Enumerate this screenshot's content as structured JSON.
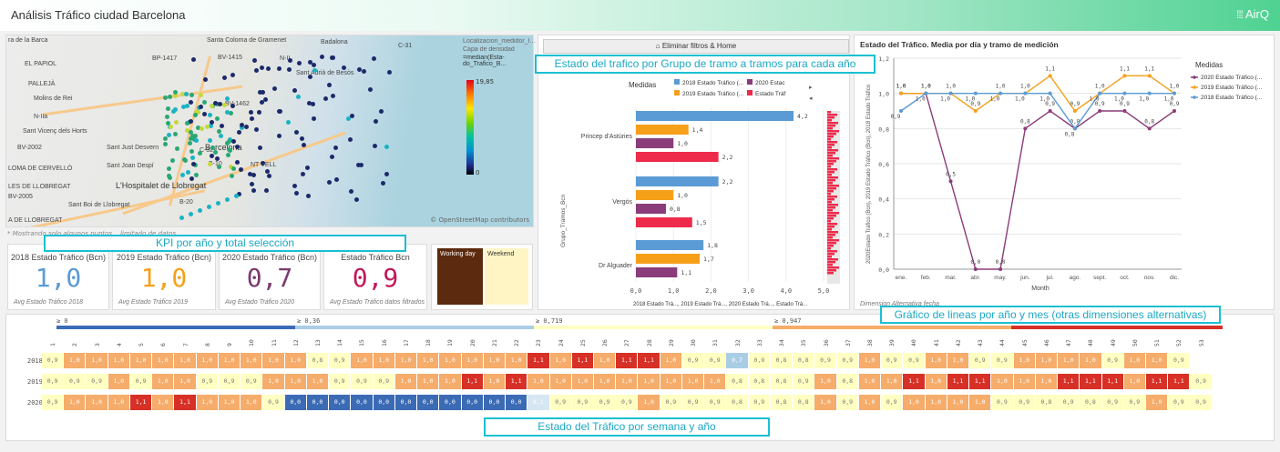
{
  "header": {
    "title": "Análisis Tráfico ciudad Barcelona",
    "logo": "AirQ",
    "logo_icon": "grid-icon"
  },
  "map": {
    "labels": [
      "ra de la Barca",
      "Santa Coloma de Gramenet",
      "Badalona",
      "BP-1417",
      "BV-1415",
      "N-II",
      "Sant Adrià de Besòs",
      "EL PAPIOL",
      "PALLEJÀ",
      "Molins de Rei",
      "BV-1462",
      "N-IIa",
      "Sant Vicenç dels Horts",
      "BV-2002",
      "Sant Just Desvern",
      "Barcelona",
      "LOMA DE CERVELLÓ",
      "Sant Joan Despí",
      "LES DE LLOBREGAT",
      "BV-2005",
      "L'Hospitalet de Llobregat",
      "Sant Boi de Llobregat",
      "C-32",
      "B-10",
      "B-20",
      "C-31",
      "NT VELL",
      "A DE LLOBREGAT"
    ],
    "legend_title": "Localizacion_medidor_lat_lon",
    "legend_layer": "Capa de densidad",
    "legend_measure": "=median(Esta-do_Trafico_B...",
    "scale_max": "19,85",
    "scale_min": "0",
    "attribution": "© OpenStreetMap contributors",
    "note": "* Mostrando solo algunos puntos... limitado de datos"
  },
  "callouts": {
    "kpi": "KPI por año y total selección",
    "bar": "Estado del trafico por Grupo de tramo a tramos para cada año",
    "line": "Gráfico de lineas por año y mes (otras dimensiones alternativas)",
    "heat": "Estado del Tráfico por semana y año"
  },
  "kpis": [
    {
      "label": "2018 Estado Tráfico (Bcn)",
      "value": "1,0",
      "foot": "Avg Estado Tráfico 2018",
      "color": "#5b9bd5"
    },
    {
      "label": "2019 Estado Tráfico (Bcn)",
      "value": "1,0",
      "foot": "Avg Estado Tráfico 2019",
      "color": "#f6a01a"
    },
    {
      "label": "2020 Estado Tráfico (Bcn)",
      "value": "0,7",
      "foot": "Avg Estado Tráfico 2020",
      "color": "#7b3a6f"
    },
    {
      "label": "Estado Tráfico Bcn",
      "value": "0,9",
      "foot": "Avg Estado Tráfico datos filtrados",
      "color": "#c2185b"
    }
  ],
  "daytype": {
    "working": "Working day",
    "weekend": "Weekend"
  },
  "bar": {
    "button": "Eliminar filtros & Home",
    "legend_title": "Medidas",
    "legend": [
      "2018 Estado Tráfico (...",
      "2020 Estac",
      "2019 Estado Tráfico (...",
      "Estado Tráf"
    ],
    "ylabel": "Grupo_Tramos_Bcn",
    "xticks": [
      "0,0",
      "1,0",
      "2,0",
      "3,0",
      "4,0",
      "5,0"
    ],
    "xfoot": "2018 Estado Trá..., 2019 Estado Trá..., 2020 Estado Trá..., Estado Trá..."
  },
  "line": {
    "title": "Estado del Tráfico. Media por día y tramo de medición",
    "ylabel": "2020Estado Tráfico (Bcn), 2019 Estado Tráfico (Bcn), 2018 Estado Tráfico",
    "legend_title": "Medidas",
    "legend": [
      "2020 Estado Tráfico (...",
      "2019 Estado Tráfico (...",
      "2018 Estado Tráfico (..."
    ],
    "xfoot": "Month",
    "footer": "Dimension Alternativa fecha"
  },
  "chart_data": [
    {
      "type": "bar",
      "categories": [
        "Princep d'Astúries",
        "Vergós",
        "Dr Alguader"
      ],
      "series": [
        {
          "name": "2018 Estado Tráfico (...",
          "values": [
            4.2,
            2.2,
            1.8
          ],
          "color": "#5b9bd5"
        },
        {
          "name": "2019 Estado Tráfico (...",
          "values": [
            1.4,
            1.0,
            1.7
          ],
          "color": "#f6a01a"
        },
        {
          "name": "2020 Estac",
          "values": [
            1.0,
            0.8,
            1.1
          ],
          "color": "#8b3c7a"
        },
        {
          "name": "Estado Tráf",
          "values": [
            2.2,
            1.5,
            null
          ],
          "color": "#ee2b4b"
        }
      ],
      "xlim": [
        0,
        5
      ]
    },
    {
      "type": "line",
      "x": [
        "ene.",
        "feb.",
        "mar.",
        "abr.",
        "may.",
        "jun.",
        "jul.",
        "ago.",
        "sept.",
        "oct.",
        "nov.",
        "dic."
      ],
      "ylim": [
        0,
        1.2
      ],
      "yticks": [
        "0,0",
        "0,2",
        "0,4",
        "0,6",
        "0,8",
        "1,0",
        "1,2"
      ],
      "series": [
        {
          "name": "2020 Estado Tráfico (...",
          "color": "#8b3c7a",
          "values": [
            1.0,
            1.0,
            0.5,
            0.0,
            0.0,
            0.8,
            0.9,
            0.8,
            0.9,
            0.9,
            0.8,
            0.9
          ]
        },
        {
          "name": "2019 Estado Tráfico (...",
          "color": "#f6a01a",
          "values": [
            1.0,
            1.0,
            1.0,
            0.9,
            1.0,
            1.0,
            1.1,
            0.9,
            1.0,
            1.1,
            1.1,
            1.0
          ]
        },
        {
          "name": "2018 Estado Tráfico (...",
          "color": "#5b9bd5",
          "values": [
            0.9,
            1.0,
            1.0,
            1.0,
            1.0,
            1.0,
            1.0,
            0.8,
            1.0,
            1.0,
            1.0,
            1.0
          ]
        }
      ]
    },
    {
      "type": "heatmap",
      "scale_labels": [
        "≥ 0",
        "≥ 0,36",
        "≥ 0,719",
        "≥ 0,947"
      ],
      "rows": [
        "2018",
        "2019",
        "2020"
      ],
      "columns": [
        "1",
        "2",
        "3",
        "4",
        "5",
        "6",
        "7",
        "8",
        "9",
        "10",
        "11",
        "12",
        "13",
        "14",
        "15",
        "16",
        "17",
        "18",
        "19",
        "20",
        "21",
        "22",
        "23",
        "24",
        "25",
        "26",
        "27",
        "28",
        "29",
        "30",
        "31",
        "32",
        "33",
        "34",
        "35",
        "36",
        "37",
        "38",
        "39",
        "40",
        "41",
        "42",
        "43",
        "44",
        "45",
        "46",
        "47",
        "48",
        "49",
        "50",
        "51",
        "52",
        "53"
      ],
      "values": [
        [
          "0,9",
          "1,0",
          "1,0",
          "1,0",
          "1,0",
          "1,0",
          "1,0",
          "1,0",
          "1,0",
          "1,0",
          "1,0",
          "1,0",
          "0,8",
          "0,9",
          "1,0",
          "1,0",
          "1,0",
          "1,0",
          "1,0",
          "1,0",
          "1,0",
          "1,0",
          "1,1",
          "1,0",
          "1,1",
          "1,0",
          "1,1",
          "1,1",
          "1,0",
          "0,9",
          "0,9",
          "0,7",
          "0,9",
          "0,8",
          "0,8",
          "0,9",
          "0,9",
          "1,0",
          "0,9",
          "0,9",
          "1,0",
          "1,0",
          "0,9",
          "0,9",
          "1,0",
          "1,0",
          "1,0",
          "1,0",
          "0,9",
          "1,0",
          "1,0",
          "0,9",
          ""
        ],
        [
          "0,9",
          "0,9",
          "0,9",
          "1,0",
          "0,9",
          "1,0",
          "1,0",
          "0,9",
          "0,9",
          "0,9",
          "1,0",
          "1,0",
          "1,0",
          "0,9",
          "0,9",
          "0,9",
          "1,0",
          "1,0",
          "1,0",
          "1,1",
          "1,0",
          "1,1",
          "1,0",
          "1,0",
          "1,0",
          "1,0",
          "1,0",
          "1,0",
          "1,0",
          "1,0",
          "1,0",
          "0,8",
          "0,8",
          "0,8",
          "0,9",
          "1,0",
          "0,8",
          "1,0",
          "1,0",
          "1,1",
          "1,0",
          "1,1",
          "1,1",
          "1,0",
          "1,0",
          "1,0",
          "1,1",
          "1,1",
          "1,1",
          "1,0",
          "1,1",
          "1,1",
          "0,9"
        ],
        [
          "0,9",
          "1,0",
          "1,0",
          "1,0",
          "1,1",
          "1,0",
          "1,1",
          "1,0",
          "1,0",
          "1,0",
          "0,9",
          "0,0",
          "0,0",
          "0,0",
          "0,0",
          "0,0",
          "0,0",
          "0,0",
          "0,0",
          "0,0",
          "0,0",
          "0,0",
          "0,1",
          "0,9",
          "0,9",
          "0,9",
          "0,9",
          "1,0",
          "0,9",
          "0,9",
          "0,9",
          "0,8",
          "0,9",
          "0,8",
          "0,8",
          "1,0",
          "0,9",
          "1,0",
          "0,9",
          "1,0",
          "1,0",
          "1,0",
          "1,0",
          "0,9",
          "0,9",
          "0,8",
          "0,9",
          "0,8",
          "0,9",
          "0,9",
          "1,0",
          "0,9",
          "0,9"
        ]
      ]
    }
  ]
}
